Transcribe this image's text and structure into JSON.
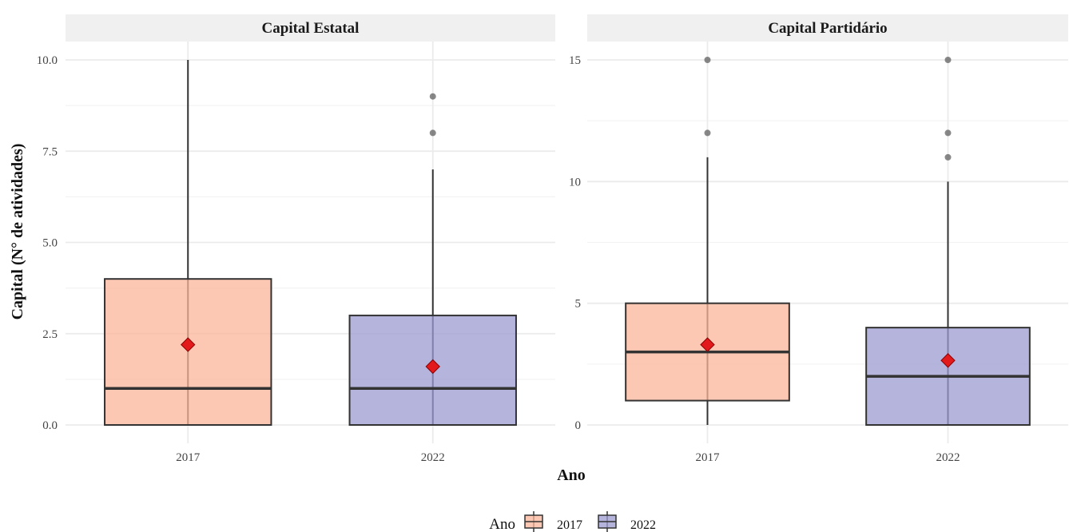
{
  "chart_data": [
    {
      "type": "box",
      "panel_title": "Capital Estatal",
      "categories": [
        "2017",
        "2022"
      ],
      "ylim": [
        0,
        10
      ],
      "yticks": [
        0,
        2.5,
        5,
        7.5,
        10
      ],
      "ytick_labels": [
        "0.0",
        "2.5",
        "5.0",
        "7.5",
        "10.0"
      ],
      "boxes": [
        {
          "category": "2017",
          "min": 0,
          "q1": 0,
          "median": 1,
          "q3": 4,
          "max": 10,
          "mean": 2.2,
          "outliers": []
        },
        {
          "category": "2022",
          "min": 0,
          "q1": 0,
          "median": 1,
          "q3": 3,
          "max": 7,
          "mean": 1.6,
          "outliers": [
            8,
            9
          ]
        }
      ]
    },
    {
      "type": "box",
      "panel_title": "Capital Partidário",
      "categories": [
        "2017",
        "2022"
      ],
      "ylim": [
        0,
        15
      ],
      "yticks": [
        0,
        5,
        10,
        15
      ],
      "ytick_labels": [
        "0",
        "5",
        "10",
        "15"
      ],
      "boxes": [
        {
          "category": "2017",
          "min": 0,
          "q1": 1,
          "median": 3,
          "q3": 5,
          "max": 11,
          "mean": 3.3,
          "outliers": [
            12,
            15
          ]
        },
        {
          "category": "2022",
          "min": 0,
          "q1": 0,
          "median": 2,
          "q3": 4,
          "max": 10,
          "mean": 2.65,
          "outliers": [
            11,
            12,
            15
          ]
        }
      ]
    }
  ],
  "xlabel": "Ano",
  "ylabel": "Capital (N° de atividades)",
  "legend": {
    "title": "Ano",
    "position": "bottom",
    "items": [
      {
        "label": "2017",
        "color": "#fbb49a"
      },
      {
        "label": "2022",
        "color": "#9b9bd2"
      }
    ]
  },
  "colors": {
    "fill_2017": "#fbb49a",
    "fill_2022": "#9b9bd2",
    "mean_marker": "#e31a1c",
    "strip_bg": "#f0f0f0",
    "grid": "#ebebeb",
    "box_line": "#333333"
  }
}
